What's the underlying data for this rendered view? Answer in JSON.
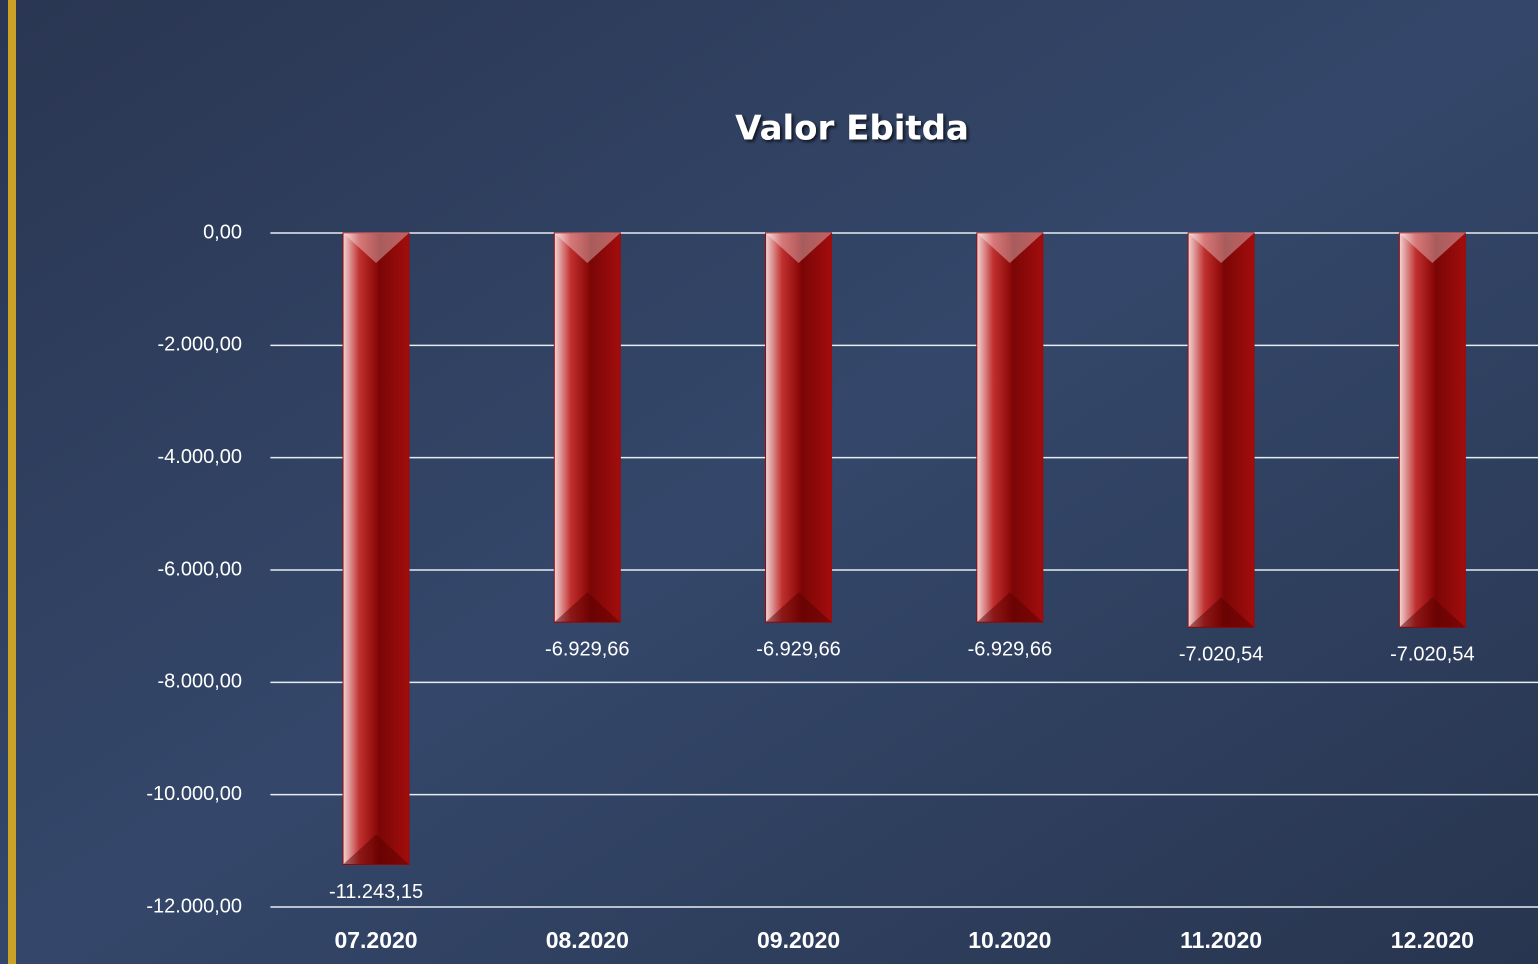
{
  "chart_data": {
    "type": "bar",
    "title": "Valor Ebitda",
    "categories": [
      "07.2020",
      "08.2020",
      "09.2020",
      "10.2020",
      "11.2020",
      "12.2020"
    ],
    "values": [
      -11243.15,
      -6929.66,
      -6929.66,
      -6929.66,
      -7020.54,
      -7020.54
    ],
    "value_labels": [
      "-11.243,15",
      "-6.929,66",
      "-6.929,66",
      "-6.929,66",
      "-7.020,54",
      "-7.020,54"
    ],
    "color": "#9b0a0a",
    "ylim": [
      -12000,
      0
    ],
    "yticks": [
      {
        "value": 0,
        "label": "0,00"
      },
      {
        "value": -2000,
        "label": "-2.000,00"
      },
      {
        "value": -4000,
        "label": "-4.000,00"
      },
      {
        "value": -6000,
        "label": "-6.000,00"
      },
      {
        "value": -8000,
        "label": "-8.000,00"
      },
      {
        "value": -10000,
        "label": "-10.000,00"
      },
      {
        "value": -12000,
        "label": "-12.000,00"
      }
    ],
    "grid": true
  }
}
